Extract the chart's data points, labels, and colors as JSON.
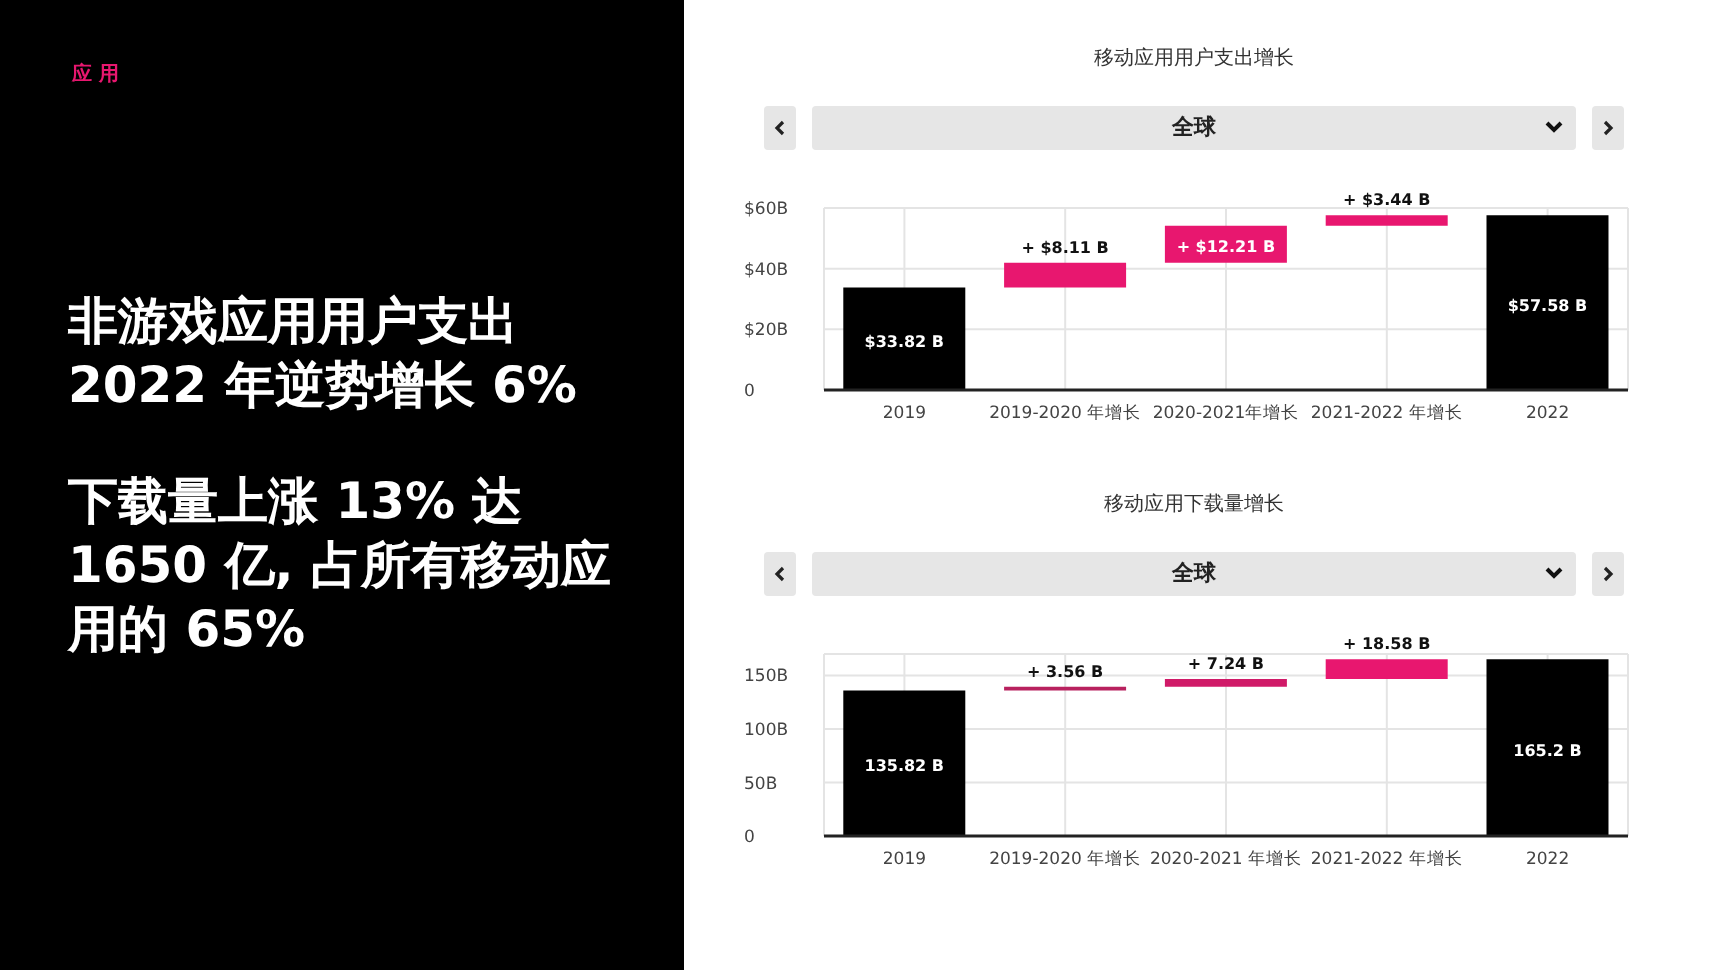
{
  "chart_data": [
    {
      "type": "other",
      "title": "应 用",
      "annotations": [
        "非游戏应用用户支出",
        "2022 年逆势增长 6%",
        "下载量上涨 13% 达",
        "1650 亿, 占所有移动应",
        "用的 65%"
      ]
    },
    {
      "type": "bar",
      "title": "移动应用用户支出增长",
      "subtitle": "全球",
      "categories": [
        "2019",
        "2019-2020 年增长",
        "2020-2021年增长",
        "2021-2022 年增长",
        "2022"
      ],
      "values": [
        33.82,
        8.11,
        12.21,
        3.44,
        57.58
      ],
      "base": [
        0,
        33.82,
        41.93,
        54.14,
        0
      ],
      "colors": [
        "#000000",
        "#e8176f",
        "#e8176f",
        "#e8176f",
        "#000000"
      ],
      "value_labels": [
        "$33.82 B",
        "+ $8.11 B",
        "+ $12.21 B",
        "+ $3.44 B",
        "$57.58 B"
      ],
      "ylim": [
        0,
        60
      ],
      "yticks": [
        0,
        {
          "value": 20,
          "label": "$20B"
        },
        {
          "value": 40,
          "label": "$40B"
        },
        {
          "value": 60,
          "label": "$60B"
        }
      ],
      "grid": true
    },
    {
      "type": "bar",
      "title": "移动应用下载量增长",
      "subtitle": "全球",
      "categories": [
        "2019",
        "2019-2020 年增长",
        "2020-2021 年增长",
        "2021-2022 年增长",
        "2022"
      ],
      "values": [
        135.82,
        3.56,
        7.24,
        18.58,
        165.2
      ],
      "base": [
        0,
        135.82,
        139.38,
        146.62,
        0
      ],
      "colors": [
        "#000000",
        "#b8215e",
        "#d01a68",
        "#e8176f",
        "#000000"
      ],
      "value_labels": [
        "135.82 B",
        "+ 3.56 B",
        "+ 7.24 B",
        "+ 18.58 B",
        "165.2 B"
      ],
      "ylim": [
        0,
        170
      ],
      "yticks": [
        0,
        {
          "value": 50,
          "label": "50B"
        },
        {
          "value": 100,
          "label": "100B"
        },
        {
          "value": 150,
          "label": "150B"
        }
      ],
      "grid": true
    }
  ]
}
